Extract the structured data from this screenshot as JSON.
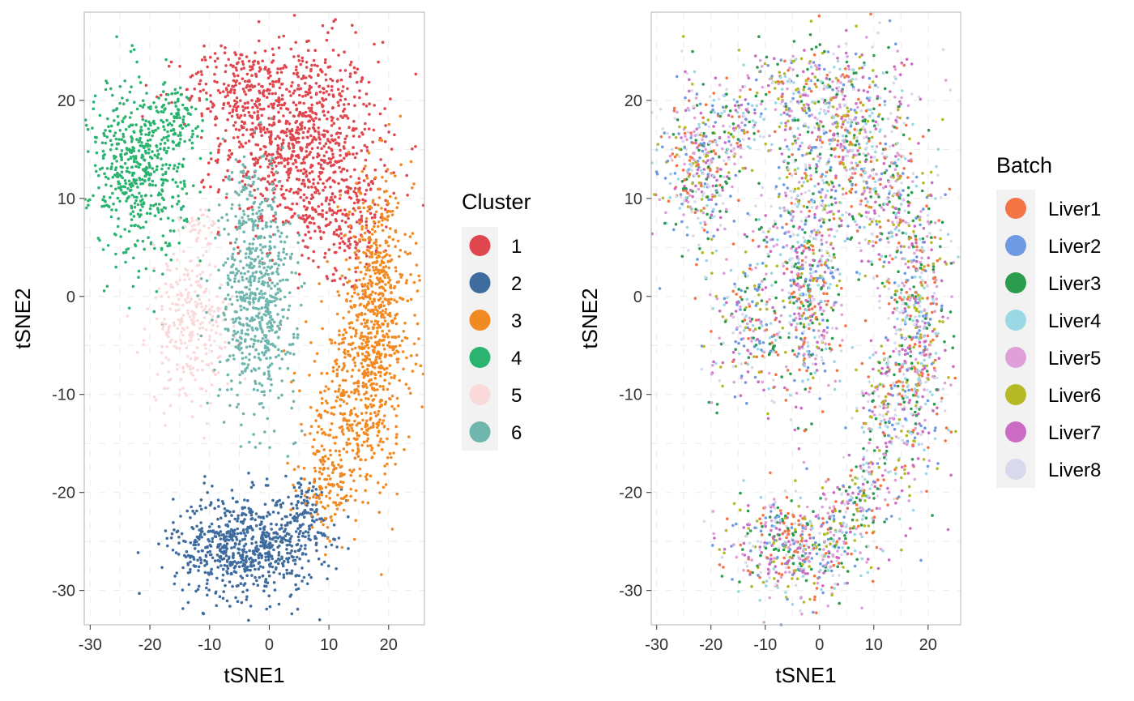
{
  "chart_data": [
    {
      "type": "scatter",
      "xlabel": "tSNE1",
      "ylabel": "tSNE2",
      "xlim": [
        -31,
        26
      ],
      "ylim": [
        -33.5,
        29
      ],
      "xticks": [
        -30,
        -20,
        -10,
        0,
        10,
        20
      ],
      "yticks": [
        -30,
        -20,
        -10,
        0,
        10,
        20
      ],
      "grid": true,
      "legend_position": "right",
      "legend_title": "Cluster",
      "series": [
        {
          "name": "1",
          "color": "#E0464E",
          "clusters": [
            {
              "cx": 5,
              "cy": 16,
              "sx": 6.5,
              "sy": 5,
              "n": 900
            },
            {
              "cx": -5,
              "cy": 21,
              "sx": 5,
              "sy": 2.2,
              "n": 200
            },
            {
              "cx": 13,
              "cy": 8,
              "sx": 4,
              "sy": 3,
              "n": 200
            }
          ]
        },
        {
          "name": "2",
          "color": "#3F6C9E",
          "clusters": [
            {
              "cx": -4,
              "cy": -25.5,
              "sx": 6,
              "sy": 2.6,
              "n": 700
            },
            {
              "cx": 6,
              "cy": -22,
              "sx": 2.5,
              "sy": 2,
              "n": 100
            }
          ]
        },
        {
          "name": "3",
          "color": "#F28A24",
          "clusters": [
            {
              "cx": 18,
              "cy": -2,
              "sx": 3,
              "sy": 7,
              "n": 700
            },
            {
              "cx": 13,
              "cy": -13,
              "sx": 3.5,
              "sy": 4.5,
              "n": 300
            },
            {
              "cx": 9,
              "cy": -19.5,
              "sx": 2,
              "sy": 2,
              "n": 80
            }
          ]
        },
        {
          "name": "4",
          "color": "#2BB370",
          "clusters": [
            {
              "cx": -22,
              "cy": 13,
              "sx": 4,
              "sy": 4.5,
              "n": 550
            },
            {
              "cx": -15,
              "cy": 18,
              "sx": 2.5,
              "sy": 1.5,
              "n": 80
            }
          ]
        },
        {
          "name": "5",
          "color": "#FAD9DA",
          "clusters": [
            {
              "cx": -13,
              "cy": -3,
              "sx": 3.5,
              "sy": 4,
              "n": 300
            },
            {
              "cx": -11,
              "cy": 7,
              "sx": 1.5,
              "sy": 1,
              "n": 30
            }
          ]
        },
        {
          "name": "6",
          "color": "#6FB6AE",
          "clusters": [
            {
              "cx": -2,
              "cy": 0,
              "sx": 3.2,
              "sy": 5.5,
              "n": 600
            },
            {
              "cx": -4,
              "cy": 10,
              "sx": 1.5,
              "sy": 3,
              "n": 60
            }
          ]
        }
      ]
    },
    {
      "type": "scatter",
      "xlabel": "tSNE1",
      "ylabel": "tSNE2",
      "xlim": [
        -31,
        26
      ],
      "ylim": [
        -33.5,
        29
      ],
      "xticks": [
        -30,
        -20,
        -10,
        0,
        10,
        20
      ],
      "yticks": [
        -30,
        -20,
        -10,
        0,
        10,
        20
      ],
      "grid": true,
      "legend_position": "right",
      "legend_title": "Batch",
      "series": [
        {
          "name": "Liver1",
          "color": "#F47445"
        },
        {
          "name": "Liver2",
          "color": "#6D9AE2"
        },
        {
          "name": "Liver3",
          "color": "#2B9B4E"
        },
        {
          "name": "Liver4",
          "color": "#9AD8E6"
        },
        {
          "name": "Liver5",
          "color": "#DFA0DA"
        },
        {
          "name": "Liver6",
          "color": "#B5B925"
        },
        {
          "name": "Liver7",
          "color": "#CC6BC3"
        },
        {
          "name": "Liver8",
          "color": "#D8D9EC"
        }
      ]
    }
  ]
}
